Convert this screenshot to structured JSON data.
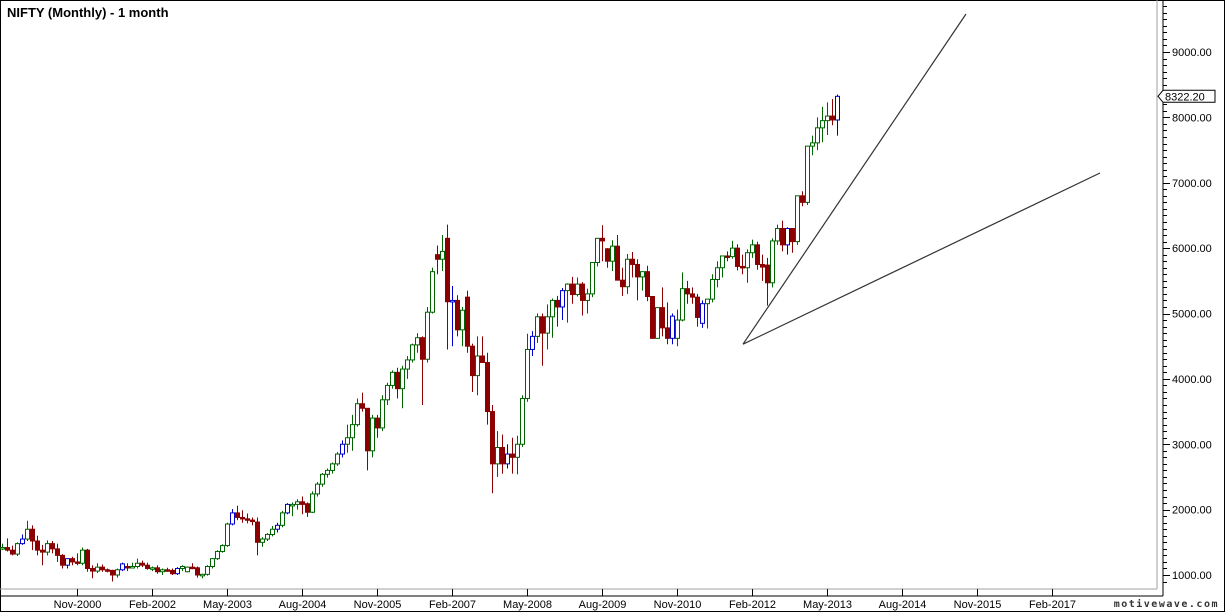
{
  "title": "NIFTY (Monthly) - 1 month",
  "watermark": "motivewave.com",
  "last_price_label": "8322.20",
  "colors": {
    "up": "#006400",
    "down": "#8b0000",
    "up_blue": "#0000cc",
    "neutral": "#000000",
    "trendline": "#333333",
    "axis_border": "#a0a0a0"
  },
  "chart_data": {
    "type": "candlestick",
    "title": "NIFTY (Monthly) - 1 month",
    "xlabel": "",
    "ylabel": "",
    "ylim": [
      800,
      9700
    ],
    "y_ticks": [
      "1000.00",
      "2000.00",
      "3000.00",
      "4000.00",
      "5000.00",
      "6000.00",
      "7000.00",
      "8000.00",
      "9000.00"
    ],
    "x_ticks": [
      "Nov-2000",
      "Feb-2002",
      "May-2003",
      "Aug-2004",
      "Nov-2005",
      "Feb-2007",
      "May-2008",
      "Aug-2009",
      "Nov-2010",
      "Feb-2012",
      "May-2013",
      "Aug-2014",
      "Nov-2015",
      "Feb-2017"
    ],
    "last_value": 8322.2,
    "grid": false,
    "legend": "none",
    "trendlines": [
      {
        "from": {
          "date": "Dec-2011",
          "value": 4530
        },
        "to": {
          "date": "Jul-2015",
          "value": 9580
        }
      },
      {
        "from": {
          "date": "Dec-2011",
          "value": 4530
        },
        "to": {
          "date": "Sep-2017",
          "value": 7140
        }
      }
    ],
    "candles_start": "Jul-1999",
    "candles": [
      [
        1380,
        1420,
        1300,
        1400
      ],
      [
        1400,
        1480,
        1380,
        1420
      ],
      [
        1420,
        1560,
        1360,
        1380
      ],
      [
        1380,
        1450,
        1300,
        1320
      ],
      [
        1320,
        1500,
        1290,
        1480
      ],
      [
        1480,
        1620,
        1460,
        1550
      ],
      [
        1550,
        1830,
        1520,
        1700
      ],
      [
        1700,
        1760,
        1380,
        1520
      ],
      [
        1520,
        1600,
        1300,
        1380
      ],
      [
        1380,
        1460,
        1150,
        1350
      ],
      [
        1350,
        1530,
        1300,
        1480
      ],
      [
        1480,
        1520,
        1330,
        1400
      ],
      [
        1400,
        1480,
        1200,
        1300
      ],
      [
        1300,
        1320,
        1100,
        1150
      ],
      [
        1150,
        1250,
        1100,
        1250
      ],
      [
        1250,
        1280,
        1150,
        1200
      ],
      [
        1200,
        1330,
        1150,
        1180
      ],
      [
        1180,
        1420,
        1150,
        1380
      ],
      [
        1380,
        1400,
        1050,
        1100
      ],
      [
        1100,
        1150,
        950,
        1060
      ],
      [
        1060,
        1180,
        1030,
        1120
      ],
      [
        1120,
        1160,
        1050,
        1080
      ],
      [
        1080,
        1100,
        1040,
        1070
      ],
      [
        1070,
        1080,
        900,
        1000
      ],
      [
        1000,
        1100,
        960,
        1080
      ],
      [
        1080,
        1190,
        1060,
        1170
      ],
      [
        1130,
        1180,
        1060,
        1120
      ],
      [
        1120,
        1190,
        1100,
        1130
      ],
      [
        1130,
        1250,
        1100,
        1180
      ],
      [
        1180,
        1220,
        1120,
        1150
      ],
      [
        1150,
        1190,
        1080,
        1100
      ],
      [
        1100,
        1130,
        1060,
        1110
      ],
      [
        1110,
        1150,
        1020,
        1050
      ],
      [
        1050,
        1100,
        1000,
        1080
      ],
      [
        1080,
        1110,
        1050,
        1070
      ],
      [
        1070,
        1100,
        1000,
        1020
      ],
      [
        1020,
        1120,
        1000,
        1100
      ],
      [
        1100,
        1150,
        1060,
        1130
      ],
      [
        1050,
        1130,
        1040,
        1120
      ],
      [
        1120,
        1180,
        1090,
        1110
      ],
      [
        1110,
        1130,
        960,
        1000
      ],
      [
        1000,
        1020,
        950,
        1010
      ],
      [
        1010,
        1150,
        990,
        1130
      ],
      [
        1130,
        1260,
        1100,
        1250
      ],
      [
        1250,
        1380,
        1230,
        1360
      ],
      [
        1360,
        1470,
        1340,
        1450
      ],
      [
        1450,
        1800,
        1430,
        1780
      ],
      [
        1780,
        2010,
        1760,
        1950
      ],
      [
        1950,
        2060,
        1840,
        1880
      ],
      [
        1880,
        1990,
        1800,
        1860
      ],
      [
        1860,
        1940,
        1790,
        1840
      ],
      [
        1840,
        1880,
        1760,
        1830
      ],
      [
        1810,
        1880,
        1300,
        1500
      ],
      [
        1500,
        1580,
        1430,
        1550
      ],
      [
        1550,
        1640,
        1520,
        1620
      ],
      [
        1620,
        1750,
        1590,
        1700
      ],
      [
        1700,
        1800,
        1650,
        1760
      ],
      [
        1760,
        1980,
        1730,
        1950
      ],
      [
        1950,
        2100,
        1930,
        2080
      ],
      [
        2060,
        2110,
        1900,
        2080
      ],
      [
        2080,
        2160,
        2000,
        2120
      ],
      [
        2120,
        2200,
        1930,
        2080
      ],
      [
        2090,
        2110,
        1890,
        1960
      ],
      [
        1960,
        2280,
        1950,
        2240
      ],
      [
        2240,
        2420,
        2200,
        2390
      ],
      [
        2390,
        2560,
        2350,
        2540
      ],
      [
        2540,
        2630,
        2490,
        2600
      ],
      [
        2600,
        2720,
        2550,
        2700
      ],
      [
        2700,
        2880,
        2670,
        2850
      ],
      [
        2850,
        3060,
        2800,
        3000
      ],
      [
        3000,
        3300,
        2870,
        3100
      ],
      [
        3100,
        3450,
        2900,
        3300
      ],
      [
        3300,
        3700,
        3270,
        3620
      ],
      [
        3620,
        3790,
        3500,
        3550
      ],
      [
        3550,
        3450,
        2600,
        2900
      ],
      [
        2900,
        3450,
        2800,
        3400
      ],
      [
        3400,
        3450,
        3100,
        3250
      ],
      [
        3250,
        3750,
        3200,
        3680
      ],
      [
        3680,
        3940,
        3600,
        3900
      ],
      [
        3900,
        4130,
        3850,
        4100
      ],
      [
        4100,
        4170,
        3700,
        3850
      ],
      [
        3850,
        4200,
        3550,
        4150
      ],
      [
        4150,
        4350,
        4000,
        4290
      ],
      [
        4290,
        4540,
        4250,
        4520
      ],
      [
        4520,
        4700,
        4400,
        4630
      ],
      [
        4630,
        4650,
        3600,
        4300
      ],
      [
        4300,
        5100,
        4250,
        5020
      ],
      [
        5020,
        5700,
        5000,
        5640
      ],
      [
        5900,
        6040,
        5600,
        5830
      ],
      [
        5830,
        6200,
        5650,
        5950
      ],
      [
        6150,
        6360,
        4450,
        5180
      ],
      [
        5180,
        5420,
        4500,
        5200
      ],
      [
        5200,
        5280,
        4650,
        4750
      ],
      [
        4750,
        5100,
        4500,
        5050
      ],
      [
        5250,
        5350,
        4400,
        4500
      ],
      [
        4500,
        4540,
        3800,
        4050
      ],
      [
        4050,
        4650,
        3750,
        4350
      ],
      [
        4350,
        4650,
        4300,
        4250
      ],
      [
        4250,
        4400,
        3300,
        3500
      ],
      [
        3500,
        3600,
        2250,
        2700
      ],
      [
        2700,
        3200,
        2500,
        2950
      ],
      [
        2950,
        3150,
        2550,
        2700
      ],
      [
        2700,
        3000,
        2630,
        2850
      ],
      [
        2850,
        3100,
        2550,
        2800
      ],
      [
        2800,
        3130,
        2540,
        3000
      ],
      [
        3000,
        3750,
        2960,
        3700
      ],
      [
        3700,
        4690,
        3650,
        4450
      ],
      [
        4450,
        4730,
        4350,
        4650
      ],
      [
        4650,
        5000,
        4550,
        4950
      ],
      [
        4950,
        5000,
        4200,
        4700
      ],
      [
        4700,
        5140,
        4450,
        4950
      ],
      [
        4950,
        5230,
        4630,
        5200
      ],
      [
        5200,
        5270,
        4800,
        5100
      ],
      [
        5100,
        5390,
        4900,
        5350
      ],
      [
        5350,
        5460,
        4860,
        5450
      ],
      [
        5450,
        5560,
        5150,
        5290
      ],
      [
        5290,
        5550,
        5260,
        5450
      ],
      [
        5450,
        5480,
        4970,
        5200
      ],
      [
        5200,
        5380,
        5000,
        5300
      ],
      [
        5300,
        5770,
        5250,
        5780
      ],
      [
        5780,
        6120,
        5720,
        6150
      ],
      [
        6150,
        6350,
        5800,
        6110
      ],
      [
        5990,
        6000,
        5700,
        5800
      ],
      [
        5800,
        6120,
        5650,
        6030
      ],
      [
        6030,
        6200,
        5570,
        5510
      ],
      [
        5510,
        5700,
        5270,
        5410
      ],
      [
        5410,
        5910,
        5300,
        5830
      ],
      [
        5830,
        5940,
        5550,
        5750
      ],
      [
        5750,
        5830,
        5200,
        5560
      ],
      [
        5560,
        5640,
        5350,
        5640
      ],
      [
        5640,
        5730,
        5190,
        5260
      ],
      [
        5260,
        5140,
        4800,
        4620
      ],
      [
        4620,
        5060,
        4720,
        5090
      ],
      [
        5090,
        5400,
        4650,
        4780
      ],
      [
        4780,
        5170,
        4530,
        4620
      ],
      [
        4620,
        5000,
        4530,
        4960
      ],
      [
        4620,
        5060,
        4500,
        4900
      ],
      [
        4900,
        5630,
        4880,
        5380
      ],
      [
        5380,
        5500,
        5150,
        5300
      ],
      [
        5300,
        5400,
        5150,
        5250
      ],
      [
        5250,
        5300,
        4800,
        4940
      ],
      [
        4850,
        5200,
        4780,
        5150
      ],
      [
        5150,
        5220,
        4770,
        5220
      ],
      [
        5220,
        5600,
        5170,
        5520
      ],
      [
        5520,
        5800,
        5400,
        5700
      ],
      [
        5700,
        5800,
        5550,
        5880
      ],
      [
        5880,
        5950,
        5800,
        5870
      ],
      [
        5870,
        6110,
        5840,
        6000
      ],
      [
        6000,
        6060,
        5660,
        5720
      ],
      [
        5720,
        5900,
        5600,
        5700
      ],
      [
        5700,
        5980,
        5470,
        5930
      ],
      [
        5930,
        6130,
        5850,
        6050
      ],
      [
        6050,
        6100,
        5670,
        5750
      ],
      [
        5750,
        5900,
        5500,
        5710
      ],
      [
        5740,
        5850,
        5120,
        5470
      ],
      [
        5470,
        6150,
        5400,
        6110
      ],
      [
        6110,
        6360,
        6050,
        6300
      ],
      [
        6300,
        6420,
        5950,
        6050
      ],
      [
        6050,
        6320,
        5900,
        6300
      ],
      [
        6300,
        6250,
        5930,
        6100
      ],
      [
        6100,
        6800,
        6050,
        6800
      ],
      [
        6800,
        6870,
        6640,
        6700
      ],
      [
        6700,
        7560,
        6660,
        7560
      ],
      [
        7560,
        7720,
        7420,
        7610
      ],
      [
        7610,
        8000,
        7500,
        7840
      ],
      [
        7840,
        8160,
        7620,
        7950
      ],
      [
        7950,
        8230,
        7730,
        8020
      ],
      [
        8020,
        8280,
        7880,
        7960
      ],
      [
        7960,
        8350,
        7720,
        8322
      ]
    ]
  }
}
